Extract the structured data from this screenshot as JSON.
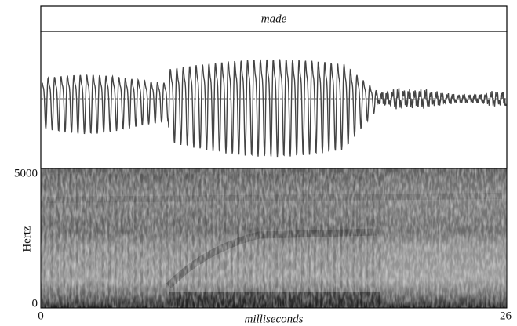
{
  "chart_data": {
    "type": "spectrogram",
    "title": "made",
    "xlabel": "milliseconds",
    "ylabel": "Hertz",
    "xlim": [
      0,
      26
    ],
    "xticks": [
      0,
      26
    ],
    "ylim": [
      0,
      5000
    ],
    "yticks": [
      0,
      5000
    ]
  }
}
